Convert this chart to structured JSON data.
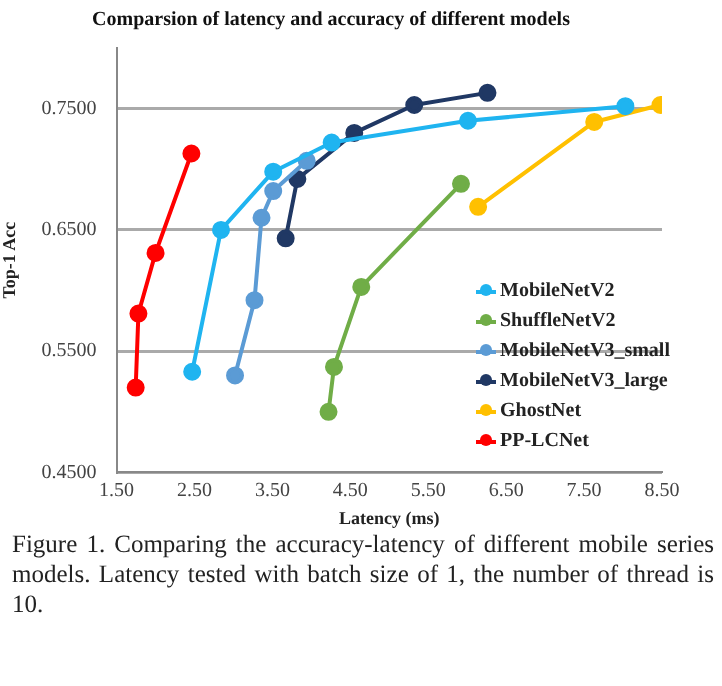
{
  "chart_data": {
    "type": "line",
    "title": "Comparsion of latency and accuracy of different models",
    "xlabel": "Latency (ms)",
    "ylabel": "Top-1 Acc",
    "xlim": [
      1.5,
      8.5
    ],
    "xticks": [
      {
        "value": 1.5,
        "label": "1.50"
      },
      {
        "value": 2.5,
        "label": "2.50"
      },
      {
        "value": 3.5,
        "label": "3.50"
      },
      {
        "value": 4.5,
        "label": "4.50"
      },
      {
        "value": 5.5,
        "label": "5.50"
      },
      {
        "value": 6.5,
        "label": "6.50"
      },
      {
        "value": 7.5,
        "label": "7.50"
      },
      {
        "value": 8.5,
        "label": "8.50"
      }
    ],
    "ylim": [
      0.45,
      0.8
    ],
    "yticks": [
      {
        "value": 0.45,
        "label": "0.4500"
      },
      {
        "value": 0.55,
        "label": "0.5500"
      },
      {
        "value": 0.65,
        "label": "0.6500"
      },
      {
        "value": 0.75,
        "label": "0.7500"
      }
    ],
    "grid": "y",
    "legend": "right",
    "marker": "circle",
    "line_style": "solid",
    "series": [
      {
        "name": "MobileNetV2",
        "color": "#1fb4f0",
        "x": [
          2.47,
          2.84,
          3.51,
          4.26,
          6.01,
          8.03
        ],
        "values": [
          0.533,
          0.65,
          0.698,
          0.722,
          0.74,
          0.752
        ]
      },
      {
        "name": "ShuffleNetV2",
        "color": "#70ad47",
        "x": [
          4.22,
          4.29,
          4.64,
          5.92
        ],
        "values": [
          0.5,
          0.537,
          0.603,
          0.688
        ]
      },
      {
        "name": "MobileNetV3_small",
        "color": "#5b9bd5",
        "x": [
          3.02,
          3.27,
          3.36,
          3.51,
          3.94
        ],
        "values": [
          0.53,
          0.592,
          0.66,
          0.682,
          0.707
        ]
      },
      {
        "name": "MobileNetV3_large",
        "color": "#203864",
        "x": [
          3.67,
          3.82,
          4.55,
          5.32,
          6.26
        ],
        "values": [
          0.643,
          0.692,
          0.73,
          0.753,
          0.763
        ]
      },
      {
        "name": "GhostNet",
        "color": "#ffc000",
        "x": [
          6.14,
          7.63,
          8.48
        ],
        "values": [
          0.669,
          0.739,
          0.753
        ]
      },
      {
        "name": "PP-LCNet",
        "color": "#ff0000",
        "x": [
          1.745,
          1.78,
          2.0,
          2.46
        ],
        "values": [
          0.52,
          0.581,
          0.631,
          0.713
        ]
      }
    ],
    "annotations": [
      "Figure 1. Comparing the accuracy-latency of different mobile series models. Latency tested with batch size of 1, the number of thread is 10."
    ]
  }
}
